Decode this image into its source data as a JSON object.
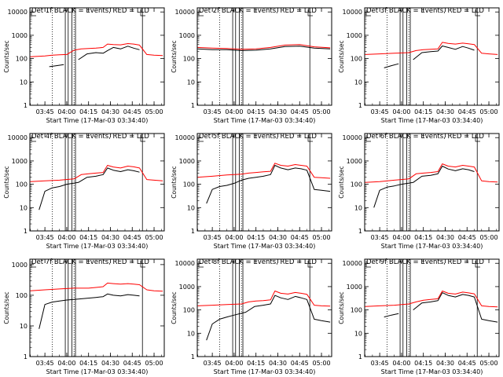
{
  "figure": {
    "background": "#ffffff",
    "axis_color": "#000000",
    "events_color": "#000000",
    "lld_color": "#ff0000"
  },
  "chart_data": [
    {
      "type": "line",
      "title": "Det 1f BLACK = Events, RED = LLD",
      "xlabel": "Start Time (17-Mar-03 03:34:40)",
      "ylabel": "Counts/sec",
      "xtick_labels": [
        "03:45",
        "04:00",
        "04:15",
        "04:30",
        "04:45",
        "05:00"
      ],
      "ytick_labels": [
        "1",
        "10",
        "100",
        "1000",
        "10000"
      ],
      "y_scale": "log",
      "ylim": [
        1,
        15000
      ],
      "series": [
        {
          "name": "Events",
          "color": "#000000",
          "x": [
            "03:39",
            "03:42",
            "03:48",
            "03:53",
            "03:58",
            "04:04",
            "04:08",
            "04:14",
            "04:20",
            "04:25",
            "04:28",
            "04:32",
            "04:37",
            "04:42",
            "04:46",
            "04:50"
          ],
          "y": [
            null,
            null,
            45,
            50,
            55,
            null,
            90,
            160,
            180,
            170,
            220,
            300,
            260,
            340,
            280,
            240
          ]
        },
        {
          "name": "LLD",
          "color": "#ff0000",
          "x": [
            "03:35",
            "03:40",
            "03:45",
            "03:50",
            "03:55",
            "04:00",
            "04:05",
            "04:10",
            "04:15",
            "04:20",
            "04:25",
            "04:28",
            "04:32",
            "04:37",
            "04:42",
            "04:46",
            "04:50",
            "04:55",
            "05:00",
            "05:06"
          ],
          "y": [
            120,
            125,
            130,
            140,
            145,
            150,
            230,
            260,
            270,
            280,
            300,
            420,
            400,
            390,
            440,
            420,
            380,
            150,
            140,
            135
          ]
        }
      ]
    },
    {
      "type": "line",
      "title": "Det 2f BLACK = Events, RED = LLD",
      "xlabel": "Start Time (17-Mar-03 03:34:40)",
      "ylabel": "Counts/sec",
      "xtick_labels": [
        "03:45",
        "04:00",
        "04:15",
        "04:30",
        "04:45",
        "05:00"
      ],
      "ytick_labels": [
        "1",
        "10",
        "100",
        "1000",
        "10000"
      ],
      "y_scale": "log",
      "ylim": [
        1,
        15000
      ],
      "series": [
        {
          "name": "Events",
          "color": "#000000",
          "x": [
            "03:35",
            "03:45",
            "03:55",
            "04:05",
            "04:15",
            "04:25",
            "04:35",
            "04:45",
            "04:55",
            "05:06"
          ],
          "y": [
            260,
            240,
            240,
            220,
            230,
            260,
            330,
            340,
            280,
            260
          ]
        },
        {
          "name": "LLD",
          "color": "#ff0000",
          "x": [
            "03:35",
            "03:45",
            "03:55",
            "04:05",
            "04:15",
            "04:25",
            "04:35",
            "04:45",
            "04:55",
            "05:06"
          ],
          "y": [
            300,
            280,
            270,
            250,
            260,
            300,
            380,
            400,
            320,
            290
          ]
        }
      ]
    },
    {
      "type": "line",
      "title": "Det 3f BLACK = Events, RED = LLD",
      "xlabel": "Start Time (17-Mar-03 03:34:40)",
      "ylabel": "Counts/sec",
      "xtick_labels": [
        "03:45",
        "04:00",
        "04:15",
        "04:30",
        "04:45",
        "05:00"
      ],
      "ytick_labels": [
        "1",
        "10",
        "100",
        "1000",
        "10000"
      ],
      "y_scale": "log",
      "ylim": [
        1,
        15000
      ],
      "series": [
        {
          "name": "Events",
          "color": "#000000",
          "x": [
            "03:42",
            "03:48",
            "03:53",
            "03:58",
            "04:04",
            "04:08",
            "04:14",
            "04:20",
            "04:25",
            "04:28",
            "04:32",
            "04:37",
            "04:42",
            "04:46",
            "04:50"
          ],
          "y": [
            null,
            40,
            50,
            60,
            null,
            90,
            180,
            200,
            210,
            350,
            300,
            250,
            330,
            280,
            230
          ]
        },
        {
          "name": "LLD",
          "color": "#ff0000",
          "x": [
            "03:35",
            "03:45",
            "03:55",
            "04:05",
            "04:10",
            "04:15",
            "04:20",
            "04:25",
            "04:28",
            "04:32",
            "04:37",
            "04:42",
            "04:46",
            "04:50",
            "04:55",
            "05:00",
            "05:06"
          ],
          "y": [
            150,
            160,
            170,
            180,
            220,
            240,
            250,
            260,
            500,
            450,
            420,
            460,
            430,
            400,
            170,
            160,
            150
          ]
        }
      ]
    },
    {
      "type": "line",
      "title": "Det 4f BLACK = Events, RED = LLD",
      "xlabel": "Start Time (17-Mar-03 03:34:40)",
      "ylabel": "Counts/sec",
      "xtick_labels": [
        "03:45",
        "04:00",
        "04:15",
        "04:30",
        "04:45",
        "05:00"
      ],
      "ytick_labels": [
        "1",
        "10",
        "100",
        "1000",
        "10000"
      ],
      "y_scale": "log",
      "ylim": [
        1,
        15000
      ],
      "series": [
        {
          "name": "Events",
          "color": "#000000",
          "x": [
            "03:41",
            "03:45",
            "03:50",
            "03:55",
            "04:00",
            "04:08",
            "04:14",
            "04:20",
            "04:25",
            "04:28",
            "04:32",
            "04:37",
            "04:42",
            "04:46",
            "04:50"
          ],
          "y": [
            8,
            50,
            70,
            80,
            100,
            120,
            200,
            220,
            260,
            500,
            400,
            350,
            420,
            380,
            330
          ]
        },
        {
          "name": "LLD",
          "color": "#ff0000",
          "x": [
            "03:35",
            "03:45",
            "03:55",
            "04:05",
            "04:10",
            "04:15",
            "04:20",
            "04:25",
            "04:28",
            "04:32",
            "04:37",
            "04:42",
            "04:46",
            "04:50",
            "04:55",
            "05:00",
            "05:06"
          ],
          "y": [
            130,
            140,
            150,
            170,
            260,
            280,
            300,
            320,
            650,
            550,
            500,
            600,
            560,
            500,
            160,
            150,
            140
          ]
        }
      ]
    },
    {
      "type": "line",
      "title": "Det 5f BLACK = Events, RED = LLD",
      "xlabel": "Start Time (17-Mar-03 03:34:40)",
      "ylabel": "Counts/sec",
      "xtick_labels": [
        "03:45",
        "04:00",
        "04:15",
        "04:30",
        "04:45",
        "05:00"
      ],
      "ytick_labels": [
        "1",
        "10",
        "100",
        "1000",
        "10000"
      ],
      "y_scale": "log",
      "ylim": [
        1,
        15000
      ],
      "series": [
        {
          "name": "Events",
          "color": "#000000",
          "x": [
            "03:41",
            "03:45",
            "03:50",
            "03:55",
            "04:00",
            "04:05",
            "04:10",
            "04:15",
            "04:20",
            "04:25",
            "04:28",
            "04:32",
            "04:37",
            "04:42",
            "04:46",
            "04:50",
            "04:55",
            "05:00",
            "05:06"
          ],
          "y": [
            15,
            60,
            80,
            90,
            110,
            150,
            180,
            200,
            220,
            260,
            650,
            500,
            420,
            500,
            460,
            400,
            60,
            55,
            50
          ]
        },
        {
          "name": "LLD",
          "color": "#ff0000",
          "x": [
            "03:35",
            "03:45",
            "03:55",
            "04:05",
            "04:10",
            "04:15",
            "04:20",
            "04:25",
            "04:28",
            "04:32",
            "04:37",
            "04:42",
            "04:46",
            "04:50",
            "04:55",
            "05:00",
            "05:06"
          ],
          "y": [
            200,
            220,
            250,
            270,
            300,
            320,
            340,
            360,
            800,
            650,
            600,
            700,
            650,
            600,
            200,
            190,
            180
          ]
        }
      ]
    },
    {
      "type": "line",
      "title": "Det 6f BLACK = Events, RED = LLD",
      "xlabel": "Start Time (17-Mar-03 03:34:40)",
      "ylabel": "Counts/sec",
      "xtick_labels": [
        "03:45",
        "04:00",
        "04:15",
        "04:30",
        "04:45",
        "05:00"
      ],
      "ytick_labels": [
        "1",
        "10",
        "100",
        "1000",
        "10000"
      ],
      "y_scale": "log",
      "ylim": [
        1,
        15000
      ],
      "series": [
        {
          "name": "Events",
          "color": "#000000",
          "x": [
            "03:41",
            "03:45",
            "03:50",
            "03:55",
            "04:00",
            "04:08",
            "04:14",
            "04:20",
            "04:25",
            "04:28",
            "04:32",
            "04:37",
            "04:42",
            "04:46",
            "04:50"
          ],
          "y": [
            10,
            55,
            75,
            85,
            100,
            120,
            220,
            240,
            280,
            600,
            450,
            380,
            460,
            420,
            350
          ]
        },
        {
          "name": "LLD",
          "color": "#ff0000",
          "x": [
            "03:35",
            "03:45",
            "03:55",
            "04:05",
            "04:10",
            "04:15",
            "04:20",
            "04:25",
            "04:28",
            "04:32",
            "04:37",
            "04:42",
            "04:46",
            "04:50",
            "04:55",
            "05:00",
            "05:06"
          ],
          "y": [
            120,
            130,
            150,
            170,
            280,
            300,
            320,
            350,
            750,
            600,
            550,
            650,
            600,
            550,
            140,
            130,
            125
          ]
        }
      ]
    },
    {
      "type": "line",
      "title": "Det 7f BLACK = Events, RED = LLD",
      "xlabel": "Start Time (17-Mar-03 03:34:40)",
      "ylabel": "Counts/sec",
      "xtick_labels": [
        "03:45",
        "04:00",
        "04:15",
        "04:30",
        "04:45",
        "05:00"
      ],
      "ytick_labels": [
        "1",
        "10",
        "100",
        "1000"
      ],
      "y_scale": "log",
      "ylim": [
        1,
        1500
      ],
      "series": [
        {
          "name": "Events",
          "color": "#000000",
          "x": [
            "03:41",
            "03:45",
            "03:50",
            "03:55",
            "04:00",
            "04:08",
            "04:14",
            "04:20",
            "04:25",
            "04:28",
            "04:32",
            "04:37",
            "04:42",
            "04:46",
            "04:50"
          ],
          "y": [
            8,
            50,
            60,
            65,
            70,
            75,
            80,
            85,
            90,
            110,
            100,
            95,
            105,
            100,
            95
          ]
        },
        {
          "name": "LLD",
          "color": "#ff0000",
          "x": [
            "03:35",
            "03:45",
            "03:55",
            "04:05",
            "04:10",
            "04:15",
            "04:20",
            "04:25",
            "04:28",
            "04:32",
            "04:37",
            "04:42",
            "04:46",
            "04:50",
            "04:55",
            "05:00",
            "05:06"
          ],
          "y": [
            140,
            150,
            160,
            170,
            170,
            170,
            180,
            190,
            250,
            240,
            230,
            240,
            230,
            220,
            150,
            140,
            135
          ]
        }
      ]
    },
    {
      "type": "line",
      "title": "Det 8f BLACK = Events, RED = LLD",
      "xlabel": "Start Time (17-Mar-03 03:34:40)",
      "ylabel": "Counts/sec",
      "xtick_labels": [
        "03:45",
        "04:00",
        "04:15",
        "04:30",
        "04:45",
        "05:00"
      ],
      "ytick_labels": [
        "1",
        "10",
        "100",
        "1000",
        "10000"
      ],
      "y_scale": "log",
      "ylim": [
        1,
        15000
      ],
      "series": [
        {
          "name": "Events",
          "color": "#000000",
          "x": [
            "03:41",
            "03:45",
            "03:50",
            "03:55",
            "04:00",
            "04:08",
            "04:14",
            "04:20",
            "04:25",
            "04:28",
            "04:32",
            "04:37",
            "04:42",
            "04:46",
            "04:50",
            "04:55",
            "05:00",
            "05:06"
          ],
          "y": [
            5,
            25,
            40,
            50,
            60,
            80,
            140,
            160,
            180,
            420,
            330,
            280,
            380,
            330,
            280,
            40,
            35,
            30
          ]
        },
        {
          "name": "LLD",
          "color": "#ff0000",
          "x": [
            "03:35",
            "03:45",
            "03:55",
            "04:05",
            "04:10",
            "04:15",
            "04:20",
            "04:25",
            "04:28",
            "04:32",
            "04:37",
            "04:42",
            "04:46",
            "04:50",
            "04:55",
            "05:00",
            "05:06"
          ],
          "y": [
            150,
            160,
            170,
            180,
            220,
            240,
            250,
            270,
            650,
            520,
            480,
            560,
            520,
            470,
            160,
            150,
            145
          ]
        }
      ]
    },
    {
      "type": "line",
      "title": "Det 9f BLACK = Events, RED = LLD",
      "xlabel": "Start Time (17-Mar-03 03:34:40)",
      "ylabel": "Counts/sec",
      "xtick_labels": [
        "03:45",
        "04:00",
        "04:15",
        "04:30",
        "04:45",
        "05:00"
      ],
      "ytick_labels": [
        "1",
        "10",
        "100",
        "1000",
        "10000"
      ],
      "y_scale": "log",
      "ylim": [
        1,
        15000
      ],
      "series": [
        {
          "name": "Events",
          "color": "#000000",
          "x": [
            "03:42",
            "03:48",
            "03:53",
            "03:58",
            "04:04",
            "04:08",
            "04:14",
            "04:20",
            "04:25",
            "04:28",
            "04:32",
            "04:37",
            "04:42",
            "04:46",
            "04:50",
            "04:55",
            "05:00",
            "05:06"
          ],
          "y": [
            null,
            50,
            60,
            70,
            null,
            100,
            200,
            220,
            250,
            550,
            420,
            360,
            460,
            420,
            360,
            40,
            35,
            30
          ]
        },
        {
          "name": "LLD",
          "color": "#ff0000",
          "x": [
            "03:35",
            "03:45",
            "03:55",
            "04:05",
            "04:10",
            "04:15",
            "04:20",
            "04:25",
            "04:28",
            "04:32",
            "04:37",
            "04:42",
            "04:46",
            "04:50",
            "04:55",
            "05:00",
            "05:06"
          ],
          "y": [
            140,
            150,
            160,
            180,
            220,
            260,
            280,
            300,
            650,
            520,
            480,
            580,
            540,
            490,
            150,
            140,
            135
          ]
        }
      ]
    }
  ]
}
